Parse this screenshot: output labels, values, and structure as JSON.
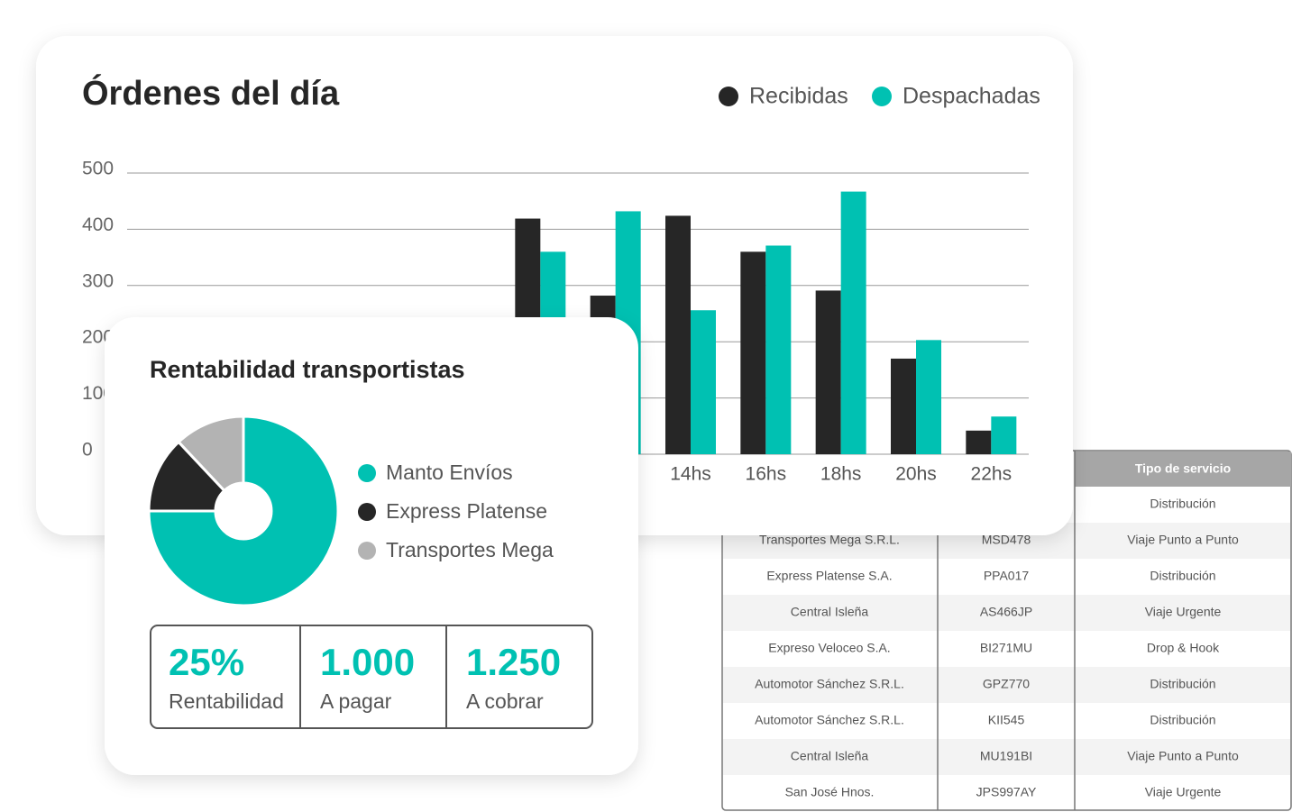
{
  "chart_data": [
    {
      "type": "bar",
      "title": "Órdenes del día",
      "categories": [
        null,
        null,
        null,
        null,
        null,
        null,
        null,
        "14hs",
        "16hs",
        "18hs",
        "20hs",
        "22hs"
      ],
      "series": [
        {
          "name": "Recibidas",
          "color": "#262626",
          "values": [
            null,
            null,
            null,
            null,
            null,
            419,
            282,
            424,
            360,
            291,
            170,
            42
          ]
        },
        {
          "name": "Despachadas",
          "color": "#00c1b2",
          "values": [
            null,
            null,
            null,
            null,
            null,
            360,
            432,
            256,
            371,
            467,
            203,
            67
          ]
        }
      ],
      "ylim": [
        0,
        500
      ],
      "yticks": [
        0,
        100,
        200,
        300,
        400,
        500
      ],
      "grid": true,
      "legend": "top-right"
    },
    {
      "type": "pie",
      "title": "Rentabilidad transportistas",
      "categories": [
        "Manto Envíos",
        "Express Platense",
        "Transportes Mega"
      ],
      "values": [
        75,
        13,
        12
      ],
      "colors": [
        "#00c1b2",
        "#262626",
        "#b3b3b3"
      ],
      "donut": true
    }
  ],
  "stats": [
    {
      "value": "25%",
      "label": "Rentabilidad"
    },
    {
      "value": "1.000",
      "label": "A pagar"
    },
    {
      "value": "1.250",
      "label": "A cobrar"
    }
  ],
  "table": {
    "columns": [
      null,
      null,
      "Tipo de servicio"
    ],
    "rows": [
      [
        null,
        null,
        "Distribución"
      ],
      [
        "Transportes Mega S.R.L.",
        "MSD478",
        "Viaje Punto a Punto"
      ],
      [
        "Express Platense S.A.",
        "PPA017",
        "Distribución"
      ],
      [
        "Central Isleña",
        "AS466JP",
        "Viaje Urgente"
      ],
      [
        "Expreso Veloceo S.A.",
        "BI271MU",
        "Drop & Hook"
      ],
      [
        "Automotor Sánchez S.R.L.",
        "GPZ770",
        "Distribución"
      ],
      [
        "Automotor Sánchez S.R.L.",
        "KII545",
        "Distribución"
      ],
      [
        "Central Isleña",
        "MU191BI",
        "Viaje Punto a Punto"
      ],
      [
        "San José Hnos.",
        "JPS997AY",
        "Viaje Urgente"
      ]
    ]
  }
}
